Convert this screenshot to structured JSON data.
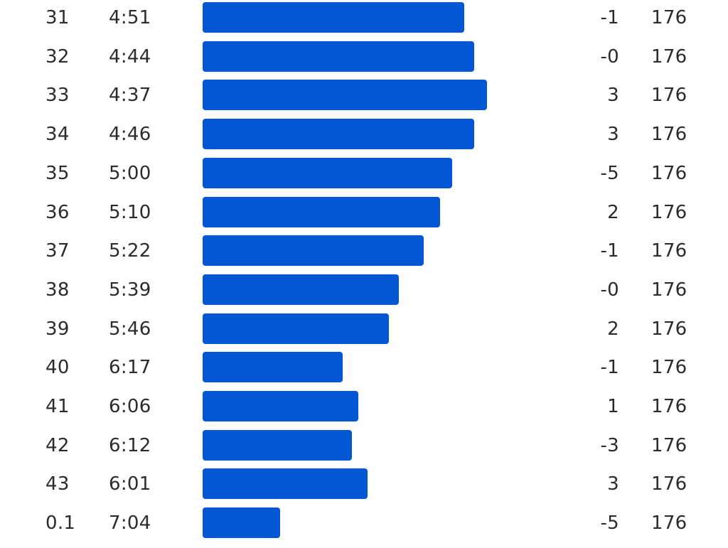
{
  "colors": {
    "bar": "#0457d4",
    "text": "#2b2b2b",
    "background": "#ffffff"
  },
  "splits": [
    {
      "km": "31",
      "pace": "4:51",
      "pace_bar_fraction": 0.797,
      "elevation": "-1",
      "heart_rate": "176"
    },
    {
      "km": "32",
      "pace": "4:44",
      "pace_bar_fraction": 0.826,
      "elevation": "-0",
      "heart_rate": "176"
    },
    {
      "km": "33",
      "pace": "4:37",
      "pace_bar_fraction": 0.865,
      "elevation": "3",
      "heart_rate": "176"
    },
    {
      "km": "34",
      "pace": "4:46",
      "pace_bar_fraction": 0.826,
      "elevation": "3",
      "heart_rate": "176"
    },
    {
      "km": "35",
      "pace": "5:00",
      "pace_bar_fraction": 0.76,
      "elevation": "-5",
      "heart_rate": "176"
    },
    {
      "km": "36",
      "pace": "5:10",
      "pace_bar_fraction": 0.722,
      "elevation": "2",
      "heart_rate": "176"
    },
    {
      "km": "37",
      "pace": "5:22",
      "pace_bar_fraction": 0.674,
      "elevation": "-1",
      "heart_rate": "176"
    },
    {
      "km": "38",
      "pace": "5:39",
      "pace_bar_fraction": 0.598,
      "elevation": "-0",
      "heart_rate": "176"
    },
    {
      "km": "39",
      "pace": "5:46",
      "pace_bar_fraction": 0.568,
      "elevation": "2",
      "heart_rate": "176"
    },
    {
      "km": "40",
      "pace": "6:17",
      "pace_bar_fraction": 0.426,
      "elevation": "-1",
      "heart_rate": "176"
    },
    {
      "km": "41",
      "pace": "6:06",
      "pace_bar_fraction": 0.474,
      "elevation": "1",
      "heart_rate": "176"
    },
    {
      "km": "42",
      "pace": "6:12",
      "pace_bar_fraction": 0.455,
      "elevation": "-3",
      "heart_rate": "176"
    },
    {
      "km": "43",
      "pace": "6:01",
      "pace_bar_fraction": 0.502,
      "elevation": "3",
      "heart_rate": "176"
    },
    {
      "km": "0.1",
      "pace": "7:04",
      "pace_bar_fraction": 0.235,
      "elevation": "-5",
      "heart_rate": "176"
    }
  ]
}
